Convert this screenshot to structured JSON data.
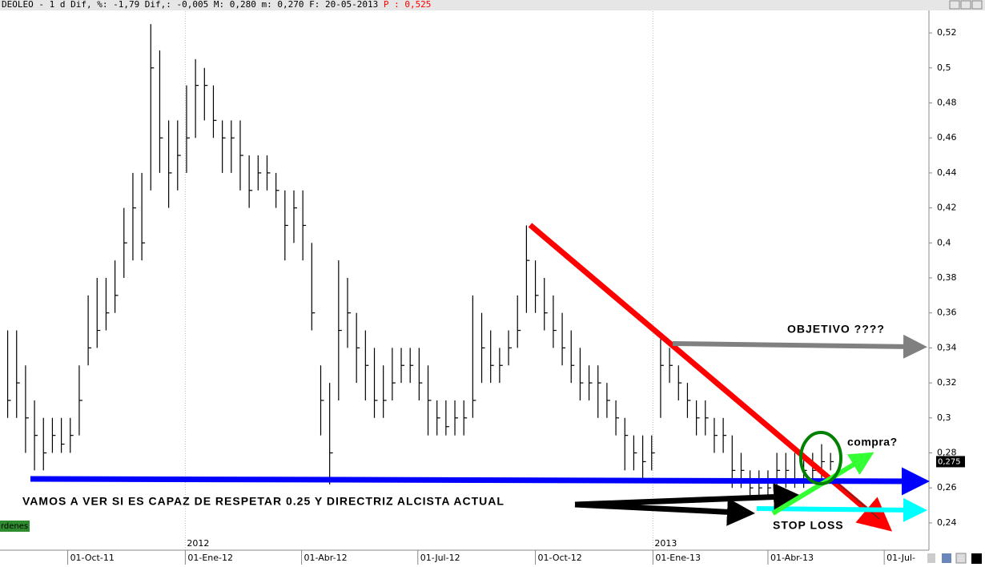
{
  "chart_data": {
    "type": "ohlc",
    "title": "DEOLEO -  1 d Dif, %: -1,79 Dif,: -0,005 M: 0,280 m: 0,270 F: 20-05-2013",
    "price_label": "P : 0,525",
    "last_label": "0,275",
    "orders_label": "rdenes",
    "annotations": [
      "OBJETIVO ????",
      "compra?",
      "VAMOS A VER SI ES CAPAZ DE RESPETAR 0.25 Y DIRECTRIZ ALCISTA ACTUAL",
      "STOP LOSS"
    ],
    "x": [
      "2011-08-15",
      "2011-08-22",
      "2011-08-29",
      "2011-09-05",
      "2011-09-12",
      "2011-09-19",
      "2011-09-26",
      "2011-10-03",
      "2011-10-10",
      "2011-10-17",
      "2011-10-24",
      "2011-10-31",
      "2011-11-07",
      "2011-11-14",
      "2011-11-21",
      "2011-11-28",
      "2011-12-05",
      "2011-12-12",
      "2011-12-19",
      "2011-12-26",
      "2012-01-02",
      "2012-01-09",
      "2012-01-16",
      "2012-01-23",
      "2012-01-30",
      "2012-02-06",
      "2012-02-13",
      "2012-02-20",
      "2012-02-27",
      "2012-03-05",
      "2012-03-12",
      "2012-03-19",
      "2012-03-26",
      "2012-04-02",
      "2012-04-09",
      "2012-04-16",
      "2012-04-23",
      "2012-04-30",
      "2012-05-07",
      "2012-05-14",
      "2012-05-21",
      "2012-05-28",
      "2012-06-04",
      "2012-06-11",
      "2012-06-18",
      "2012-06-25",
      "2012-07-02",
      "2012-07-09",
      "2012-07-16",
      "2012-07-23",
      "2012-07-30",
      "2012-08-06",
      "2012-08-13",
      "2012-08-20",
      "2012-08-27",
      "2012-09-03",
      "2012-09-10",
      "2012-09-17",
      "2012-09-24",
      "2012-10-01",
      "2012-10-08",
      "2012-10-15",
      "2012-10-22",
      "2012-10-29",
      "2012-11-05",
      "2012-11-12",
      "2012-11-19",
      "2012-11-26",
      "2012-12-03",
      "2012-12-10",
      "2012-12-17",
      "2012-12-24",
      "2012-12-31",
      "2013-01-07",
      "2013-01-14",
      "2013-01-21",
      "2013-01-28",
      "2013-02-04",
      "2013-02-11",
      "2013-02-18",
      "2013-02-25",
      "2013-03-04",
      "2013-03-11",
      "2013-03-18",
      "2013-03-25",
      "2013-04-01",
      "2013-04-08",
      "2013-04-15",
      "2013-04-22",
      "2013-04-29",
      "2013-05-06",
      "2013-05-13",
      "2013-05-20"
    ],
    "high": [
      0.35,
      0.35,
      0.33,
      0.31,
      0.3,
      0.3,
      0.3,
      0.3,
      0.33,
      0.37,
      0.38,
      0.38,
      0.39,
      0.42,
      0.44,
      0.44,
      0.525,
      0.51,
      0.47,
      0.47,
      0.49,
      0.505,
      0.5,
      0.49,
      0.47,
      0.47,
      0.47,
      0.45,
      0.45,
      0.45,
      0.44,
      0.43,
      0.43,
      0.43,
      0.4,
      0.33,
      0.32,
      0.39,
      0.38,
      0.36,
      0.35,
      0.34,
      0.33,
      0.34,
      0.34,
      0.34,
      0.34,
      0.33,
      0.31,
      0.31,
      0.31,
      0.31,
      0.37,
      0.36,
      0.35,
      0.34,
      0.35,
      0.37,
      0.41,
      0.39,
      0.38,
      0.37,
      0.36,
      0.35,
      0.34,
      0.33,
      0.33,
      0.32,
      0.31,
      0.3,
      0.29,
      0.29,
      0.29,
      0.345,
      0.34,
      0.33,
      0.32,
      0.31,
      0.31,
      0.3,
      0.3,
      0.29,
      0.28,
      0.27,
      0.27,
      0.27,
      0.28,
      0.28,
      0.28,
      0.28,
      0.28,
      0.285,
      0.28
    ],
    "low": [
      0.3,
      0.3,
      0.28,
      0.27,
      0.27,
      0.28,
      0.28,
      0.28,
      0.29,
      0.33,
      0.34,
      0.35,
      0.36,
      0.38,
      0.39,
      0.39,
      0.43,
      0.44,
      0.42,
      0.43,
      0.44,
      0.46,
      0.47,
      0.46,
      0.44,
      0.44,
      0.43,
      0.42,
      0.43,
      0.43,
      0.42,
      0.39,
      0.4,
      0.39,
      0.35,
      0.29,
      0.262,
      0.31,
      0.34,
      0.32,
      0.31,
      0.3,
      0.3,
      0.31,
      0.32,
      0.32,
      0.31,
      0.29,
      0.29,
      0.29,
      0.29,
      0.29,
      0.3,
      0.32,
      0.32,
      0.32,
      0.33,
      0.34,
      0.36,
      0.36,
      0.35,
      0.34,
      0.33,
      0.32,
      0.31,
      0.31,
      0.3,
      0.3,
      0.29,
      0.27,
      0.27,
      0.265,
      0.27,
      0.3,
      0.32,
      0.31,
      0.3,
      0.29,
      0.29,
      0.28,
      0.28,
      0.26,
      0.26,
      0.255,
      0.255,
      0.255,
      0.26,
      0.26,
      0.26,
      0.26,
      0.265,
      0.265,
      0.27
    ],
    "close": [
      0.31,
      0.32,
      0.3,
      0.29,
      0.28,
      0.29,
      0.285,
      0.29,
      0.31,
      0.34,
      0.35,
      0.36,
      0.37,
      0.4,
      0.42,
      0.4,
      0.5,
      0.46,
      0.44,
      0.45,
      0.46,
      0.49,
      0.49,
      0.47,
      0.46,
      0.46,
      0.45,
      0.43,
      0.44,
      0.44,
      0.43,
      0.41,
      0.42,
      0.41,
      0.36,
      0.31,
      0.28,
      0.35,
      0.36,
      0.34,
      0.33,
      0.31,
      0.31,
      0.32,
      0.33,
      0.33,
      0.32,
      0.31,
      0.3,
      0.295,
      0.3,
      0.3,
      0.31,
      0.34,
      0.33,
      0.33,
      0.34,
      0.35,
      0.39,
      0.37,
      0.36,
      0.35,
      0.34,
      0.33,
      0.32,
      0.32,
      0.32,
      0.31,
      0.3,
      0.29,
      0.28,
      0.275,
      0.28,
      0.33,
      0.33,
      0.32,
      0.31,
      0.3,
      0.3,
      0.29,
      0.29,
      0.27,
      0.27,
      0.26,
      0.26,
      0.26,
      0.27,
      0.27,
      0.265,
      0.27,
      0.27,
      0.275,
      0.275
    ],
    "color": "#000000",
    "xlim": [
      "2011-08-09",
      "2013-08-05"
    ],
    "xticks": [
      {
        "value": "2011-10-01",
        "label": "01-Oct-11"
      },
      {
        "value": "2012-01-01",
        "label": "01-Ene-12"
      },
      {
        "value": "2012-04-01",
        "label": "01-Abr-12"
      },
      {
        "value": "2012-07-01",
        "label": "01-Jul-12"
      },
      {
        "value": "2012-10-01",
        "label": "01-Oct-12"
      },
      {
        "value": "2013-01-01",
        "label": "01-Ene-13"
      },
      {
        "value": "2013-04-01",
        "label": "01-Abr-13"
      },
      {
        "value": "2013-07-01",
        "label": "01-Jul-"
      }
    ],
    "year_labels": [
      {
        "value": "2012-01-01",
        "label": "2012"
      },
      {
        "value": "2013-01-01",
        "label": "2013"
      }
    ],
    "ylim": [
      0.2244,
      0.5324
    ],
    "yticks": [
      {
        "value": 0.24,
        "label": "0,24"
      },
      {
        "value": 0.26,
        "label": "0,26"
      },
      {
        "value": 0.28,
        "label": "0,28"
      },
      {
        "value": 0.3,
        "label": "0,3"
      },
      {
        "value": 0.32,
        "label": "0,32"
      },
      {
        "value": 0.34,
        "label": "0,34"
      },
      {
        "value": 0.36,
        "label": "0,36"
      },
      {
        "value": 0.38,
        "label": "0,38"
      },
      {
        "value": 0.4,
        "label": "0,4"
      },
      {
        "value": 0.42,
        "label": "0,42"
      },
      {
        "value": 0.44,
        "label": "0,44"
      },
      {
        "value": 0.46,
        "label": "0,46"
      },
      {
        "value": 0.48,
        "label": "0,48"
      },
      {
        "value": 0.5,
        "label": "0,5"
      },
      {
        "value": 0.52,
        "label": "0,52"
      }
    ],
    "y_axis_side": "right"
  }
}
